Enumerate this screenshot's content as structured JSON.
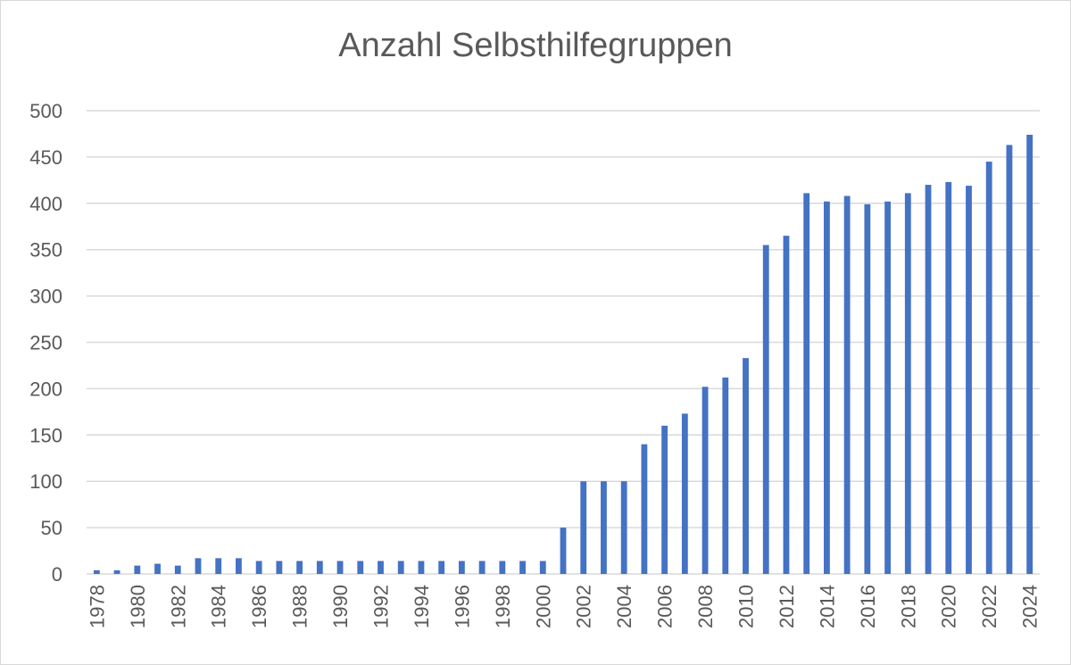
{
  "chart_data": {
    "type": "bar",
    "title": "Anzahl Selbsthilfegruppen",
    "xlabel": "",
    "ylabel": "",
    "ylim": [
      0,
      500
    ],
    "yticks": [
      0,
      50,
      100,
      150,
      200,
      250,
      300,
      350,
      400,
      450,
      500
    ],
    "grid": true,
    "legend": "none",
    "bar_color": "#4472c4",
    "categories": [
      "1978",
      "1979",
      "1980",
      "1981",
      "1982",
      "1983",
      "1984",
      "1985",
      "1986",
      "1987",
      "1988",
      "1989",
      "1990",
      "1991",
      "1992",
      "1993",
      "1994",
      "1995",
      "1996",
      "1997",
      "1998",
      "1999",
      "2000",
      "2001",
      "2002",
      "2003",
      "2004",
      "2005",
      "2006",
      "2007",
      "2008",
      "2009",
      "2010",
      "2011",
      "2012",
      "2013",
      "2014",
      "2015",
      "2016",
      "2017",
      "2018",
      "2019",
      "2020",
      "2021",
      "2022",
      "2023",
      "2024"
    ],
    "x_tick_labels": [
      "1978",
      "1980",
      "1982",
      "1984",
      "1986",
      "1988",
      "1990",
      "1992",
      "1994",
      "1996",
      "1998",
      "2000",
      "2002",
      "2004",
      "2006",
      "2008",
      "2010",
      "2012",
      "2014",
      "2016",
      "2018",
      "2020",
      "2022",
      "2024"
    ],
    "values": [
      4,
      4,
      9,
      11,
      9,
      17,
      17,
      17,
      14,
      14,
      14,
      14,
      14,
      14,
      14,
      14,
      14,
      14,
      14,
      14,
      14,
      14,
      14,
      50,
      100,
      100,
      100,
      140,
      160,
      173,
      202,
      212,
      233,
      355,
      365,
      411,
      402,
      408,
      399,
      402,
      411,
      420,
      423,
      419,
      445,
      463,
      474
    ]
  }
}
